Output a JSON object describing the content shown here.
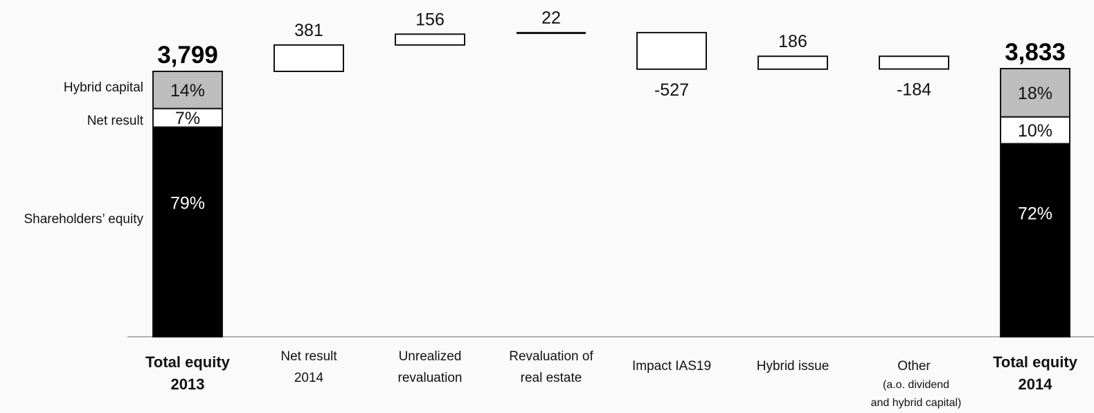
{
  "chart_data": {
    "type": "bar",
    "subtype": "waterfall",
    "categories": [
      {
        "lines": [
          "Total equity",
          "2013"
        ],
        "bold": true
      },
      {
        "lines": [
          "Net result",
          "2014"
        ]
      },
      {
        "lines": [
          "Unrealized",
          "revaluation"
        ]
      },
      {
        "lines": [
          "Revaluation of",
          "real estate"
        ]
      },
      {
        "lines": [
          "Impact IAS19"
        ]
      },
      {
        "lines": [
          "Hybrid issue"
        ]
      },
      {
        "lines": [
          "Other"
        ],
        "sub_lines": [
          "(a.o. dividend",
          "and hybrid capital)"
        ]
      },
      {
        "lines": [
          "Total equity",
          "2014"
        ],
        "bold": true
      }
    ],
    "start_total": {
      "label": "3,799",
      "value": 3799
    },
    "end_total": {
      "label": "3,833",
      "value": 3833
    },
    "changes": [
      {
        "label": "381",
        "value": 381
      },
      {
        "label": "156",
        "value": 156
      },
      {
        "label": "22",
        "value": 22
      },
      {
        "label": "-527",
        "value": -527
      },
      {
        "label": "186",
        "value": 186
      },
      {
        "label": "-184",
        "value": -184
      }
    ],
    "composition_series": [
      {
        "name": "Shareholders’ equity",
        "color": "#000000",
        "text_color": "#ffffff",
        "labels": [
          "79%",
          "72%"
        ],
        "values": [
          79,
          72
        ]
      },
      {
        "name": "Net result",
        "color": "#ffffff",
        "text_color": "#111111",
        "labels": [
          "7%",
          "10%"
        ],
        "values": [
          7,
          10
        ]
      },
      {
        "name": "Hybrid capital",
        "color": "#bdbdbd",
        "text_color": "#111111",
        "labels": [
          "14%",
          "18%"
        ],
        "values": [
          14,
          18
        ]
      }
    ],
    "legend_position": "left of first bar",
    "grid": false
  }
}
